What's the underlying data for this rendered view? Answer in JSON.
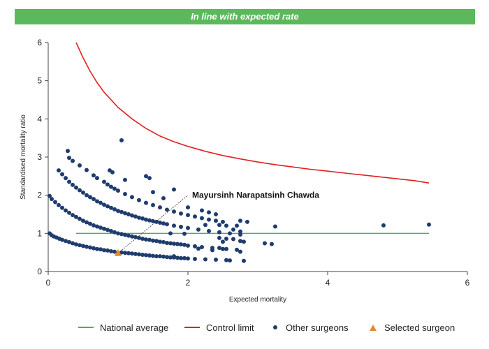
{
  "banner": {
    "title": "In line with expected rate",
    "color": "#5cb85c"
  },
  "chart_data": {
    "type": "scatter",
    "title": "In line with expected rate",
    "xlabel": "Expected mortality",
    "ylabel": "Standardised mortality ratio",
    "xlim": [
      0,
      6
    ],
    "ylim": [
      0,
      6
    ],
    "xticks": [
      "0",
      "2",
      "4",
      "6"
    ],
    "yticks": [
      "0",
      "1",
      "2",
      "3",
      "4",
      "5",
      "6"
    ],
    "grid": false,
    "legend_position": "bottom",
    "national_average": {
      "name": "National average",
      "color": "#4caf50",
      "y": 1,
      "x_range": [
        0.4,
        5.45
      ]
    },
    "control_limit": {
      "name": "Control limit",
      "color": "#e02020",
      "points": [
        [
          0.4,
          6.0
        ],
        [
          0.5,
          5.6
        ],
        [
          0.6,
          5.25
        ],
        [
          0.7,
          4.95
        ],
        [
          0.8,
          4.7
        ],
        [
          0.9,
          4.5
        ],
        [
          1.0,
          4.3
        ],
        [
          1.2,
          4.0
        ],
        [
          1.4,
          3.75
        ],
        [
          1.6,
          3.55
        ],
        [
          1.8,
          3.4
        ],
        [
          2.0,
          3.28
        ],
        [
          2.25,
          3.15
        ],
        [
          2.5,
          3.04
        ],
        [
          2.75,
          2.95
        ],
        [
          3.0,
          2.87
        ],
        [
          3.25,
          2.8
        ],
        [
          3.5,
          2.74
        ],
        [
          3.75,
          2.68
        ],
        [
          4.0,
          2.63
        ],
        [
          4.25,
          2.58
        ],
        [
          4.5,
          2.53
        ],
        [
          4.75,
          2.48
        ],
        [
          5.0,
          2.43
        ],
        [
          5.25,
          2.38
        ],
        [
          5.45,
          2.32
        ]
      ]
    },
    "other_surgeons": {
      "name": "Other surgeons",
      "color": "#1f3c6e",
      "points": [
        [
          0.02,
          1.0
        ],
        [
          0.05,
          0.95
        ],
        [
          0.08,
          0.92
        ],
        [
          0.12,
          0.89
        ],
        [
          0.16,
          0.86
        ],
        [
          0.2,
          0.83
        ],
        [
          0.25,
          0.8
        ],
        [
          0.3,
          0.77
        ],
        [
          0.35,
          0.74
        ],
        [
          0.4,
          0.71
        ],
        [
          0.45,
          0.69
        ],
        [
          0.5,
          0.67
        ],
        [
          0.55,
          0.65
        ],
        [
          0.6,
          0.63
        ],
        [
          0.65,
          0.61
        ],
        [
          0.7,
          0.59
        ],
        [
          0.75,
          0.58
        ],
        [
          0.8,
          0.56
        ],
        [
          0.85,
          0.55
        ],
        [
          0.9,
          0.53
        ],
        [
          0.95,
          0.52
        ],
        [
          1.05,
          0.5
        ],
        [
          1.1,
          0.49
        ],
        [
          1.15,
          0.48
        ],
        [
          1.2,
          0.47
        ],
        [
          1.25,
          0.46
        ],
        [
          1.3,
          0.45
        ],
        [
          1.35,
          0.44
        ],
        [
          1.4,
          0.43
        ],
        [
          1.45,
          0.42
        ],
        [
          1.5,
          0.41
        ],
        [
          1.55,
          0.4
        ],
        [
          1.6,
          0.4
        ],
        [
          1.65,
          0.39
        ],
        [
          1.7,
          0.38
        ],
        [
          1.75,
          0.37
        ],
        [
          1.8,
          0.37
        ],
        [
          1.85,
          0.36
        ],
        [
          1.9,
          0.35
        ],
        [
          1.95,
          0.35
        ],
        [
          2.0,
          0.34
        ],
        [
          2.1,
          0.33
        ],
        [
          2.25,
          0.32
        ],
        [
          2.4,
          0.31
        ],
        [
          2.6,
          0.29
        ],
        [
          2.8,
          0.28
        ],
        [
          0.02,
          1.98
        ],
        [
          0.05,
          1.9
        ],
        [
          0.1,
          1.82
        ],
        [
          0.15,
          1.74
        ],
        [
          0.2,
          1.67
        ],
        [
          0.25,
          1.6
        ],
        [
          0.3,
          1.54
        ],
        [
          0.35,
          1.48
        ],
        [
          0.4,
          1.43
        ],
        [
          0.45,
          1.38
        ],
        [
          0.5,
          1.33
        ],
        [
          0.55,
          1.29
        ],
        [
          0.6,
          1.25
        ],
        [
          0.65,
          1.21
        ],
        [
          0.7,
          1.18
        ],
        [
          0.75,
          1.15
        ],
        [
          0.8,
          1.12
        ],
        [
          0.85,
          1.09
        ],
        [
          0.9,
          1.06
        ],
        [
          0.95,
          1.03
        ],
        [
          1.0,
          1.0
        ],
        [
          1.05,
          0.98
        ],
        [
          1.1,
          0.96
        ],
        [
          1.15,
          0.94
        ],
        [
          1.2,
          0.92
        ],
        [
          1.25,
          0.9
        ],
        [
          1.3,
          0.88
        ],
        [
          1.35,
          0.86
        ],
        [
          1.4,
          0.84
        ],
        [
          1.45,
          0.83
        ],
        [
          1.5,
          0.81
        ],
        [
          1.55,
          0.8
        ],
        [
          1.6,
          0.78
        ],
        [
          1.65,
          0.77
        ],
        [
          1.7,
          0.75
        ],
        [
          1.75,
          0.74
        ],
        [
          1.8,
          0.73
        ],
        [
          1.85,
          0.72
        ],
        [
          1.9,
          0.71
        ],
        [
          1.95,
          0.7
        ],
        [
          2.0,
          0.68
        ],
        [
          2.1,
          0.66
        ],
        [
          2.2,
          0.64
        ],
        [
          2.35,
          0.62
        ],
        [
          2.5,
          0.59
        ],
        [
          2.7,
          0.57
        ],
        [
          0.15,
          2.65
        ],
        [
          0.2,
          2.55
        ],
        [
          0.25,
          2.45
        ],
        [
          0.3,
          2.35
        ],
        [
          0.35,
          2.27
        ],
        [
          0.4,
          2.2
        ],
        [
          0.45,
          2.13
        ],
        [
          0.5,
          2.07
        ],
        [
          0.55,
          2.0
        ],
        [
          0.6,
          1.95
        ],
        [
          0.65,
          1.9
        ],
        [
          0.7,
          1.84
        ],
        [
          0.75,
          1.8
        ],
        [
          0.8,
          1.75
        ],
        [
          0.85,
          1.71
        ],
        [
          0.9,
          1.67
        ],
        [
          0.95,
          1.63
        ],
        [
          1.0,
          1.59
        ],
        [
          1.05,
          1.56
        ],
        [
          1.1,
          1.53
        ],
        [
          1.15,
          1.5
        ],
        [
          1.2,
          1.47
        ],
        [
          1.25,
          1.44
        ],
        [
          1.3,
          1.41
        ],
        [
          1.35,
          1.39
        ],
        [
          1.4,
          1.36
        ],
        [
          1.45,
          1.34
        ],
        [
          1.5,
          1.32
        ],
        [
          1.55,
          1.3
        ],
        [
          1.6,
          1.28
        ],
        [
          1.65,
          1.26
        ],
        [
          1.7,
          1.24
        ],
        [
          1.8,
          1.2
        ],
        [
          1.9,
          1.17
        ],
        [
          2.0,
          1.14
        ],
        [
          2.15,
          1.1
        ],
        [
          2.3,
          1.06
        ],
        [
          2.45,
          1.03
        ],
        [
          2.6,
          1.0
        ],
        [
          2.75,
          0.97
        ],
        [
          0.3,
          2.98
        ],
        [
          0.35,
          2.9
        ],
        [
          0.45,
          2.78
        ],
        [
          0.55,
          2.66
        ],
        [
          0.65,
          2.52
        ],
        [
          0.7,
          2.45
        ],
        [
          0.8,
          2.35
        ],
        [
          0.85,
          2.28
        ],
        [
          0.9,
          2.22
        ],
        [
          0.95,
          2.17
        ],
        [
          1.0,
          2.12
        ],
        [
          1.1,
          2.03
        ],
        [
          1.2,
          1.95
        ],
        [
          1.3,
          1.87
        ],
        [
          1.4,
          1.8
        ],
        [
          1.5,
          1.74
        ],
        [
          1.6,
          1.68
        ],
        [
          1.7,
          1.62
        ],
        [
          1.8,
          1.57
        ],
        [
          1.9,
          1.52
        ],
        [
          2.0,
          1.48
        ],
        [
          2.1,
          1.44
        ],
        [
          2.2,
          1.4
        ],
        [
          2.3,
          1.36
        ],
        [
          2.4,
          1.33
        ],
        [
          2.5,
          1.3
        ],
        [
          0.28,
          3.16
        ],
        [
          0.88,
          2.65
        ],
        [
          0.92,
          2.6
        ],
        [
          1.05,
          3.44
        ],
        [
          1.1,
          2.4
        ],
        [
          1.4,
          2.5
        ],
        [
          1.45,
          2.45
        ],
        [
          1.8,
          2.15
        ],
        [
          1.65,
          1.92
        ],
        [
          1.5,
          2.08
        ],
        [
          2.0,
          1.68
        ],
        [
          2.2,
          1.6
        ],
        [
          2.3,
          1.55
        ],
        [
          2.4,
          1.5
        ],
        [
          2.45,
          1.22
        ],
        [
          2.55,
          1.2
        ],
        [
          2.7,
          1.2
        ],
        [
          2.75,
          1.33
        ],
        [
          2.85,
          1.3
        ],
        [
          2.65,
          1.1
        ],
        [
          2.75,
          1.05
        ],
        [
          2.45,
          0.88
        ],
        [
          2.55,
          0.86
        ],
        [
          2.65,
          0.85
        ],
        [
          2.75,
          0.8
        ],
        [
          2.8,
          0.78
        ],
        [
          2.5,
          0.78
        ],
        [
          2.45,
          0.62
        ],
        [
          2.55,
          0.59
        ],
        [
          2.35,
          0.56
        ],
        [
          2.75,
          0.52
        ],
        [
          3.1,
          0.74
        ],
        [
          3.2,
          0.72
        ],
        [
          3.25,
          1.18
        ],
        [
          4.8,
          1.21
        ],
        [
          5.45,
          1.23
        ],
        [
          2.25,
          1.22
        ],
        [
          2.15,
          0.6
        ],
        [
          1.95,
          0.99
        ],
        [
          1.75,
          1.0
        ],
        [
          1.8,
          0.4
        ],
        [
          2.55,
          0.3
        ]
      ]
    },
    "selected_surgeon": {
      "name": "Selected surgeon",
      "color": "#e8892b",
      "point": [
        1.0,
        0.48
      ],
      "label": "Mayursinh Narapatsinh Chawda",
      "label_anchor": [
        2.0,
        2.0
      ]
    }
  }
}
